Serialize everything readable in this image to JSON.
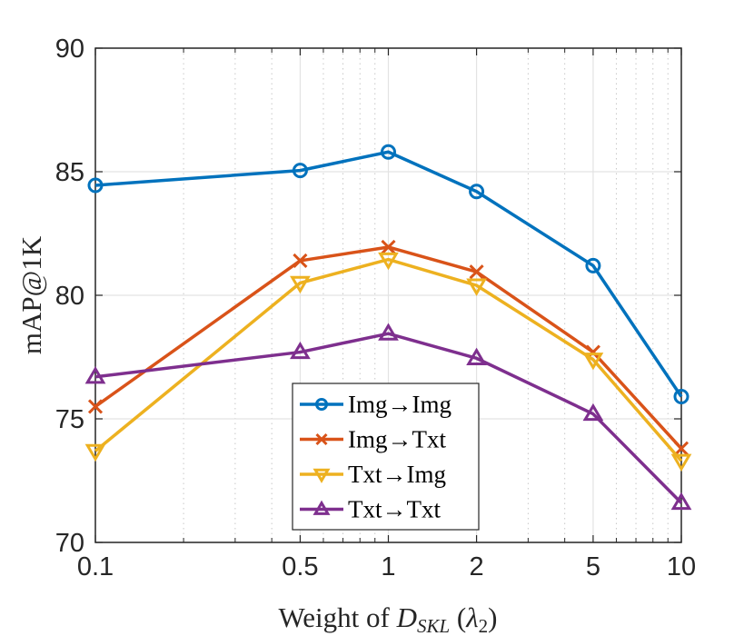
{
  "chart_data": {
    "type": "line",
    "title": "",
    "xlabel": "Weight of D_SKL (λ2)",
    "xlabel_parts": {
      "prefix": "Weight of ",
      "symbol": "D",
      "subscript": "SKL",
      "paren_open": " (",
      "lambda": "λ",
      "lambda_sub": "2",
      "paren_close": ")"
    },
    "ylabel": "mAP@1K",
    "xscale": "log",
    "xlim": [
      0.1,
      10
    ],
    "ylim": [
      70,
      90
    ],
    "x": [
      0.1,
      0.5,
      1,
      2,
      5,
      10
    ],
    "xticks": [
      0.1,
      0.5,
      1,
      2,
      5,
      10
    ],
    "xtick_labels": [
      "0.1",
      "0.5",
      "1",
      "2",
      "5",
      "10"
    ],
    "yticks": [
      70,
      75,
      80,
      85,
      90
    ],
    "ytick_labels": [
      "70",
      "75",
      "80",
      "85",
      "90"
    ],
    "grid": true,
    "minor_grid": true,
    "legend_position": "lower-center",
    "series": [
      {
        "name": "Img→Img",
        "marker": "circle",
        "color": "#0072BD",
        "values": [
          84.45,
          85.05,
          85.8,
          84.2,
          81.2,
          75.9
        ]
      },
      {
        "name": "Img→Txt",
        "marker": "x",
        "color": "#D95319",
        "values": [
          75.5,
          81.4,
          81.95,
          80.95,
          77.7,
          73.8
        ]
      },
      {
        "name": "Txt→Img",
        "marker": "triangle-down",
        "color": "#EDB120",
        "values": [
          73.7,
          80.5,
          81.45,
          80.4,
          77.4,
          73.3
        ]
      },
      {
        "name": "Txt→Txt",
        "marker": "triangle-up",
        "color": "#7E2F8E",
        "values": [
          76.7,
          77.7,
          78.45,
          77.45,
          75.2,
          71.6
        ]
      }
    ]
  }
}
